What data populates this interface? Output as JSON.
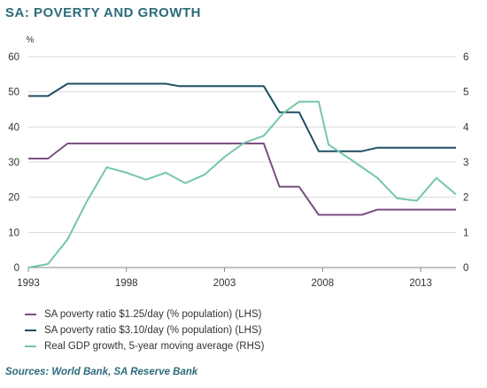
{
  "title": "SA: POVERTY AND GROWTH",
  "source": "Sources: World Bank, SA Reserve Bank",
  "colors": {
    "purple": "#7b4f82",
    "navy": "#1f4f63",
    "green": "#73c6ac",
    "grid": "#d9d9d9",
    "axis": "#888888"
  },
  "chart_data": {
    "type": "line",
    "left_unit": "%",
    "x_ticks": [
      "1993",
      "1998",
      "2003",
      "2008",
      "2013"
    ],
    "x_range": [
      1993,
      2014.8
    ],
    "left_ticks": [
      "0",
      "10",
      "20",
      "30",
      "40",
      "50",
      "60"
    ],
    "right_ticks": [
      "0",
      "1",
      "2",
      "3",
      "4",
      "5",
      "6"
    ],
    "ylim_left": [
      0,
      60
    ],
    "ylim_right": [
      0,
      6
    ],
    "grid": true,
    "legend_position": "bottom",
    "series": [
      {
        "name": "SA poverty ratio $1.25/day (% population) (LHS)",
        "axis": "left",
        "color": "#7b4f82",
        "points": [
          [
            1993,
            31
          ],
          [
            1994,
            31
          ],
          [
            1995,
            35.3
          ],
          [
            2005,
            35.3
          ],
          [
            2005.8,
            23
          ],
          [
            2006.8,
            23
          ],
          [
            2007.8,
            15
          ],
          [
            2010,
            15
          ],
          [
            2010.8,
            16.5
          ],
          [
            2014.8,
            16.5
          ]
        ]
      },
      {
        "name": "SA poverty ratio $3.10/day (% population) (LHS)",
        "axis": "left",
        "color": "#1f4f63",
        "points": [
          [
            1993,
            48.8
          ],
          [
            1994,
            48.8
          ],
          [
            1995,
            52.3
          ],
          [
            2000,
            52.3
          ],
          [
            2000.7,
            51.6
          ],
          [
            2005,
            51.6
          ],
          [
            2005.8,
            44.2
          ],
          [
            2006.8,
            44.2
          ],
          [
            2007.8,
            33.1
          ],
          [
            2010,
            33.1
          ],
          [
            2010.8,
            34.1
          ],
          [
            2014.8,
            34.1
          ]
        ]
      },
      {
        "name": "Real GDP growth, 5-year moving average (RHS)",
        "axis": "right",
        "color": "#73c6ac",
        "points": [
          [
            1993,
            0
          ],
          [
            1994,
            0.1
          ],
          [
            1995,
            0.8
          ],
          [
            1996,
            1.9
          ],
          [
            1997,
            2.85
          ],
          [
            1998,
            2.7
          ],
          [
            1999,
            2.5
          ],
          [
            2000,
            2.7
          ],
          [
            2001,
            2.4
          ],
          [
            2002,
            2.65
          ],
          [
            2003,
            3.15
          ],
          [
            2004,
            3.55
          ],
          [
            2005,
            3.75
          ],
          [
            2006,
            4.4
          ],
          [
            2006.8,
            4.72
          ],
          [
            2007.8,
            4.72
          ],
          [
            2008.3,
            3.5
          ],
          [
            2009.5,
            3.05
          ],
          [
            2010.8,
            2.55
          ],
          [
            2011.8,
            1.97
          ],
          [
            2012.8,
            1.9
          ],
          [
            2013.8,
            2.55
          ],
          [
            2014.8,
            2.08
          ]
        ]
      }
    ]
  }
}
